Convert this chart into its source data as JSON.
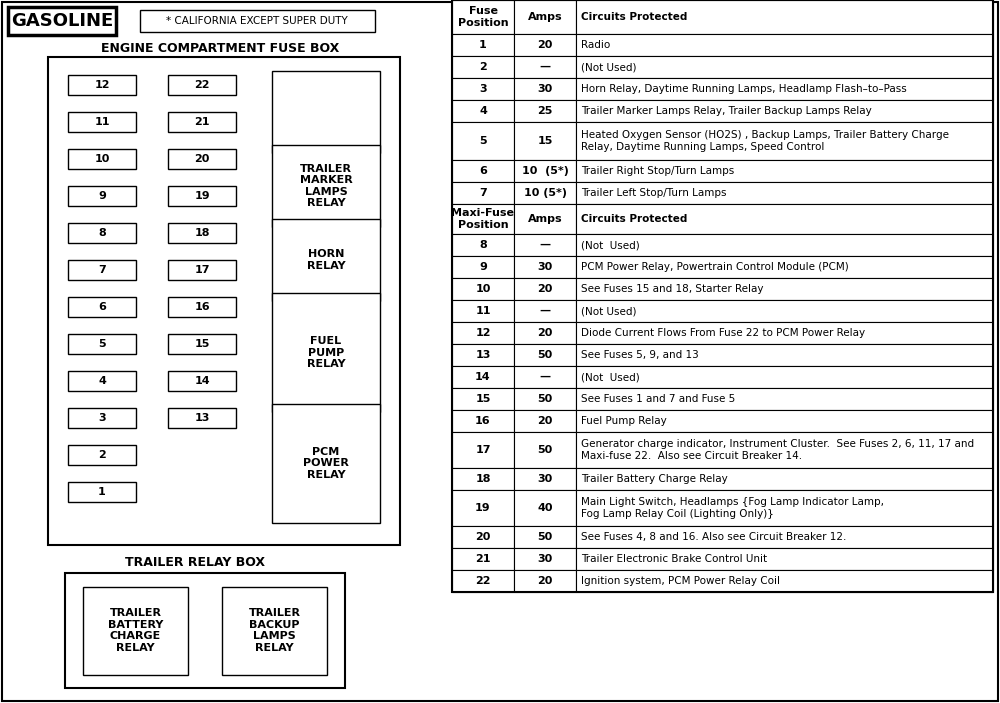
{
  "title_gasoline": "GASOLINE",
  "title_california": "* CALIFORNIA EXCEPT SUPER DUTY",
  "title_engine": "ENGINE COMPARTMENT FUSE BOX",
  "title_trailer_relay": "TRAILER RELAY BOX",
  "fuse_left": [
    12,
    11,
    10,
    9,
    8,
    7,
    6,
    5,
    4,
    3,
    2,
    1
  ],
  "fuse_right": [
    22,
    21,
    20,
    19,
    18,
    17,
    16,
    15,
    14,
    13
  ],
  "relay_boxes": [
    {
      "label": "TRAILER\nMARKER\nLAMPS\nRELAY"
    },
    {
      "label": "HORN\nRELAY"
    },
    {
      "label": "FUEL\nPUMP\nRELAY"
    },
    {
      "label": "PCM\nPOWER\nRELAY"
    }
  ],
  "trailer_relay_labels": [
    "TRAILER\nBATTERY\nCHARGE\nRELAY",
    "TRAILER\nBACKUP\nLAMPS\nRELAY"
  ],
  "table_col_headers": [
    "Fuse\nPosition",
    "Amps",
    "Circuits Protected"
  ],
  "table_rows": [
    [
      "1",
      "20",
      "Radio"
    ],
    [
      "2",
      "—",
      "(Not Used)"
    ],
    [
      "3",
      "30",
      "Horn Relay, Daytime Running Lamps, Headlamp Flash–to–Pass"
    ],
    [
      "4",
      "25",
      "Trailer Marker Lamps Relay, Trailer Backup Lamps Relay"
    ],
    [
      "5",
      "15",
      "Heated Oxygen Sensor (HO2S) , Backup Lamps, Trailer Battery Charge\nRelay, Daytime Running Lamps, Speed Control"
    ],
    [
      "6",
      "10  (5*)",
      "Trailer Right Stop/Turn Lamps"
    ],
    [
      "7",
      "10 (5*)",
      "Trailer Left Stop/Turn Lamps"
    ]
  ],
  "maxi_col_headers": [
    "Maxi-Fuse\nPosition",
    "Amps",
    "Circuits Protected"
  ],
  "maxi_rows": [
    [
      "8",
      "—",
      "(Not  Used)"
    ],
    [
      "9",
      "30",
      "PCM Power Relay, Powertrain Control Module (PCM)"
    ],
    [
      "10",
      "20",
      "See Fuses 15 and 18, Starter Relay"
    ],
    [
      "11",
      "—",
      "(Not Used)"
    ],
    [
      "12",
      "20",
      "Diode Current Flows From Fuse 22 to PCM Power Relay"
    ],
    [
      "13",
      "50",
      "See Fuses 5, 9, and 13"
    ],
    [
      "14",
      "—",
      "(Not  Used)"
    ],
    [
      "15",
      "50",
      "See Fuses 1 and 7 and Fuse 5"
    ],
    [
      "16",
      "20",
      "Fuel Pump Relay"
    ],
    [
      "17",
      "50",
      "Generator charge indicator, Instrument Cluster.  See Fuses 2, 6, 11, 17 and\nMaxi-fuse 22.  Also see Circuit Breaker 14."
    ],
    [
      "18",
      "30",
      "Trailer Battery Charge Relay"
    ],
    [
      "19",
      "40",
      "Main Light Switch, Headlamps {Fog Lamp Indicator Lamp,\nFog Lamp Relay Coil (Lighting Only)}"
    ],
    [
      "20",
      "50",
      "See Fuses 4, 8 and 16. Also see Circuit Breaker 12."
    ],
    [
      "21",
      "30",
      "Trailer Electronic Brake Control Unit"
    ],
    [
      "22",
      "20",
      "Ignition system, PCM Power Relay Coil"
    ]
  ],
  "bg_color": "#ffffff",
  "line_color": "#000000"
}
